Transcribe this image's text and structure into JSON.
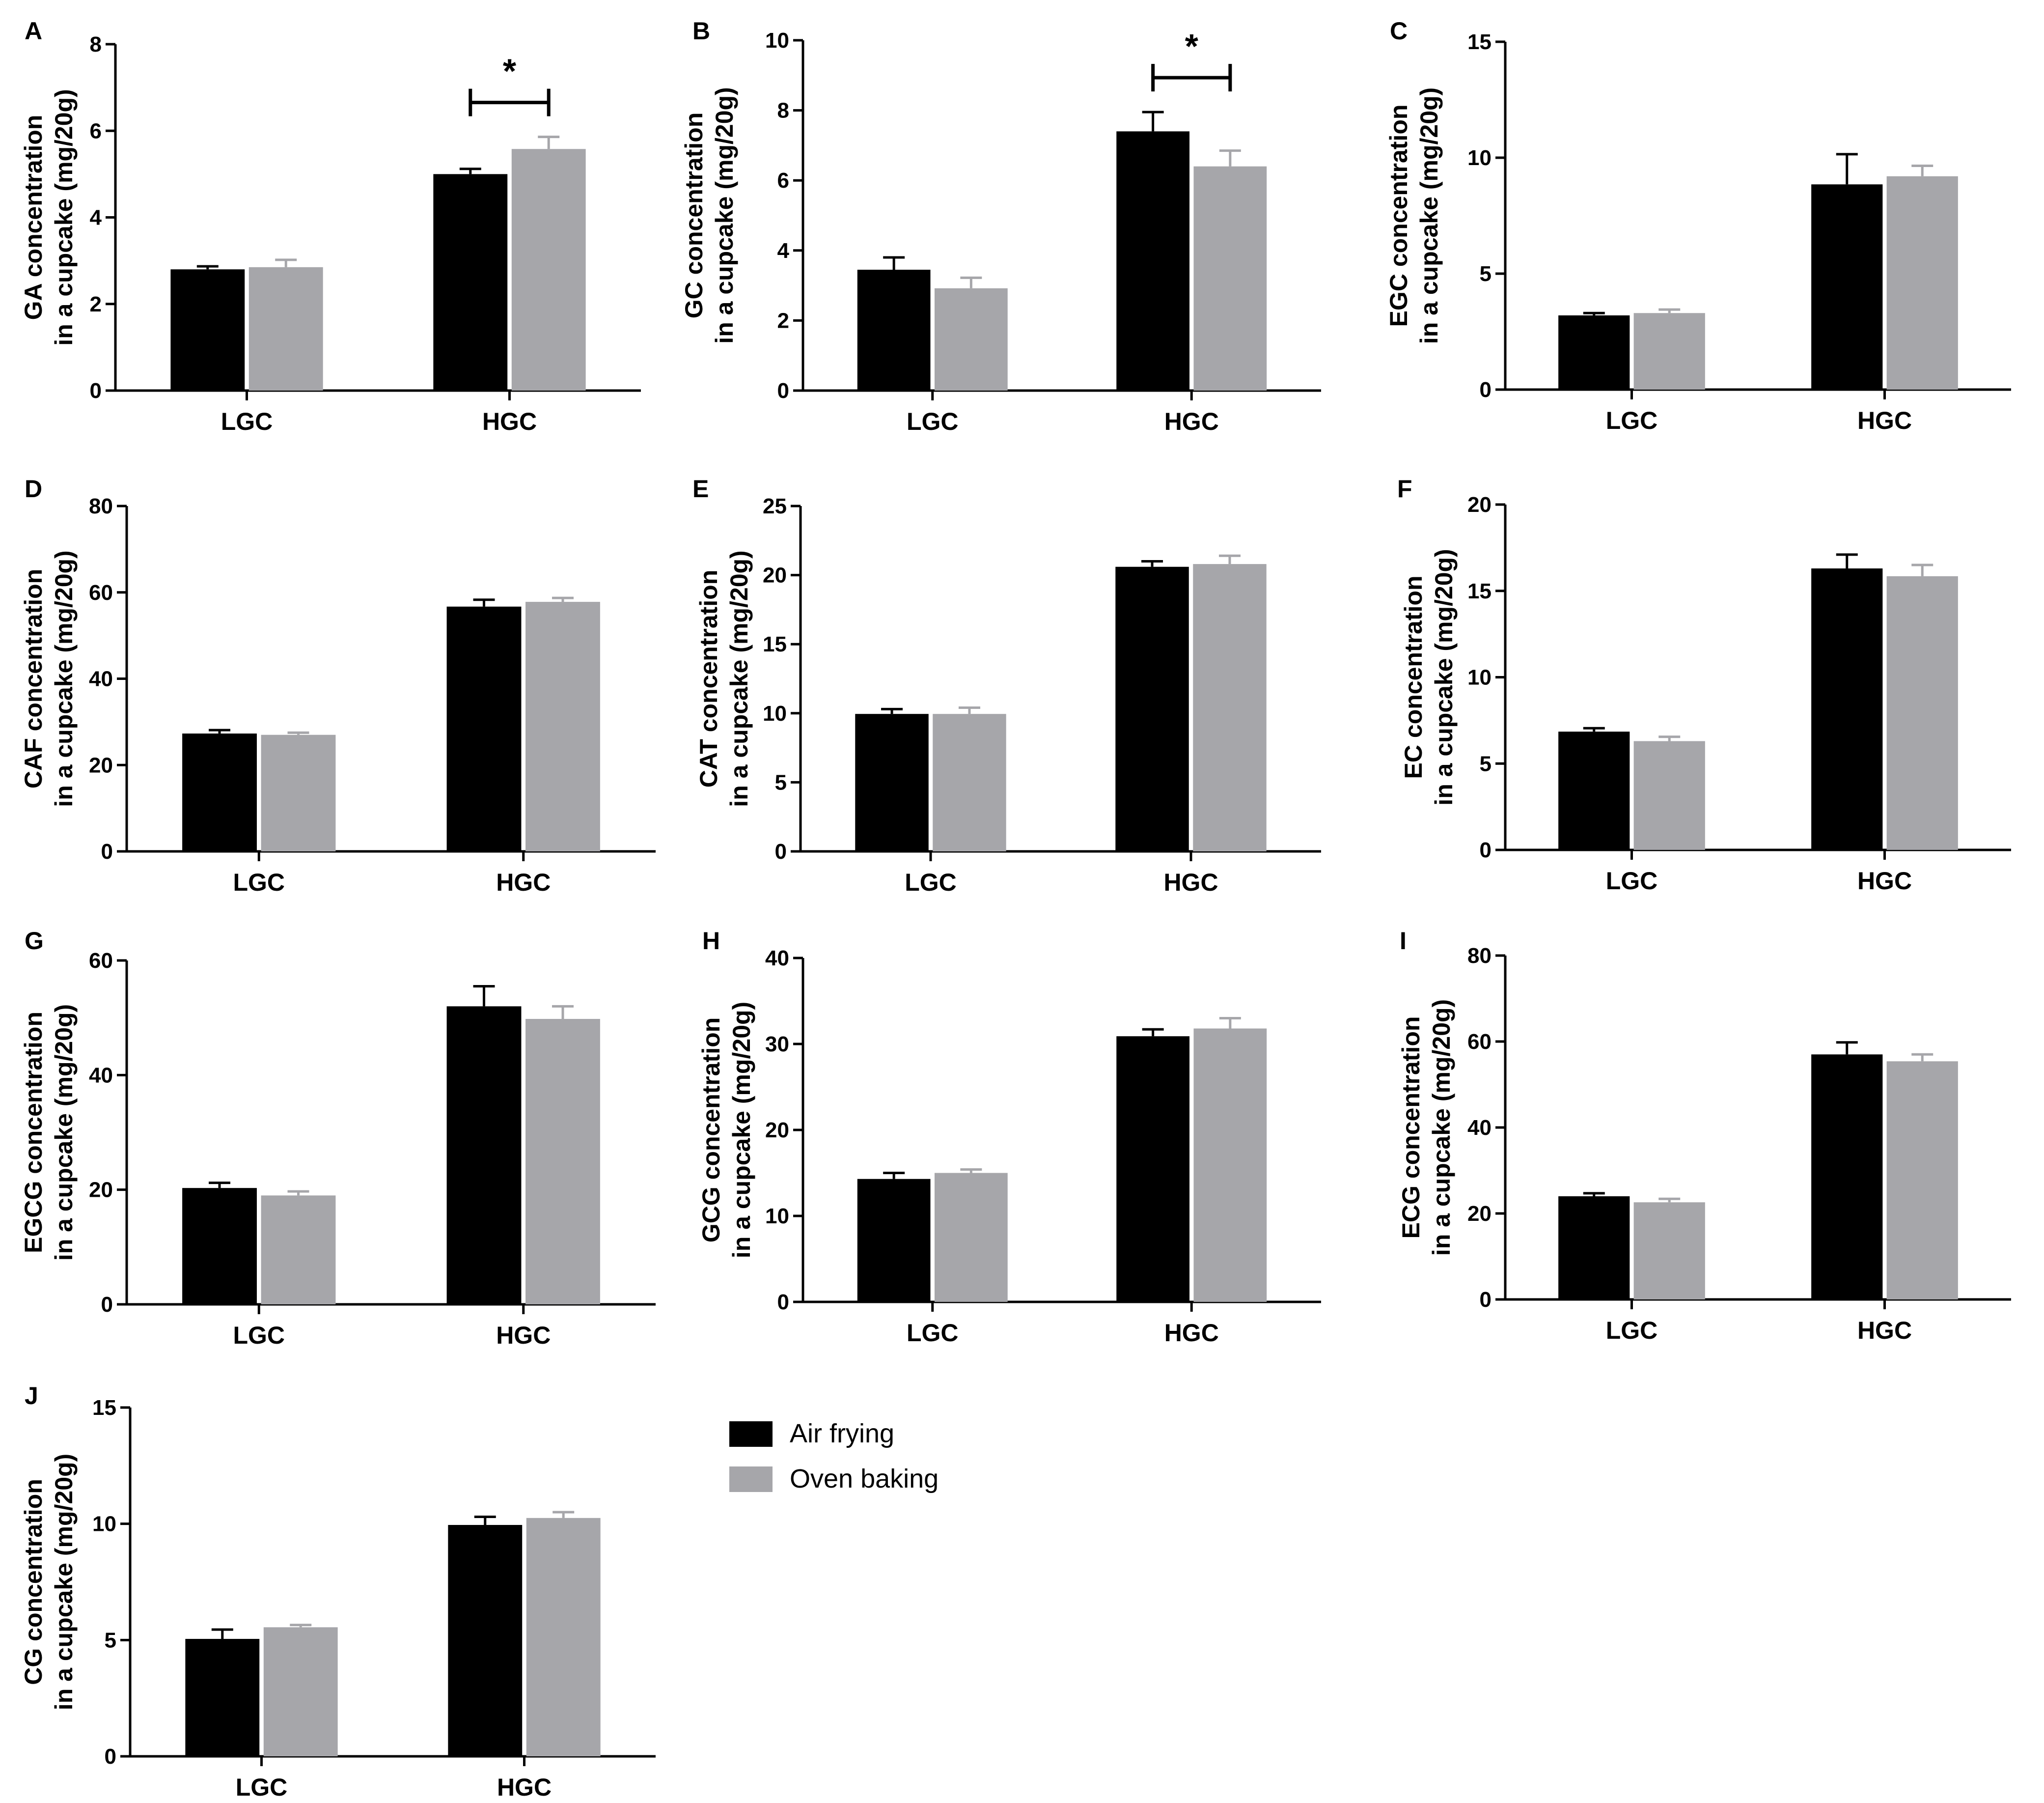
{
  "figure": {
    "series_names": [
      "Air frying",
      "Oven baking"
    ],
    "colors": {
      "air_frying": "#000000",
      "oven_baking": "#a6a6aa",
      "axis": "#000000"
    }
  },
  "legend": {
    "items": [
      {
        "label": "Air frying",
        "color": "#000000"
      },
      {
        "label": "Oven baking",
        "color": "#a6a6aa"
      }
    ]
  },
  "chart_data": [
    {
      "panel": "A",
      "type": "bar",
      "ylabel_line1": "GA concentration",
      "ylabel_line2": "in a cupcake (mg/20g)",
      "categories": [
        "LGC",
        "HGC"
      ],
      "ylim": [
        0,
        8
      ],
      "yticks": [
        0,
        2,
        4,
        6,
        8
      ],
      "series": [
        {
          "name": "Air frying",
          "values": [
            2.8,
            5.0
          ],
          "errors": [
            0.07,
            0.12
          ]
        },
        {
          "name": "Oven baking",
          "values": [
            2.85,
            5.58
          ],
          "errors": [
            0.17,
            0.28
          ]
        }
      ],
      "significance": [
        {
          "category": "HGC",
          "label": "*"
        }
      ]
    },
    {
      "panel": "B",
      "type": "bar",
      "ylabel_line1": "GC concentration",
      "ylabel_line2": "in a cupcake (mg/20g)",
      "categories": [
        "LGC",
        "HGC"
      ],
      "ylim": [
        0,
        10
      ],
      "yticks": [
        0,
        2,
        4,
        6,
        8,
        10
      ],
      "series": [
        {
          "name": "Air frying",
          "values": [
            3.45,
            7.4
          ],
          "errors": [
            0.35,
            0.55
          ]
        },
        {
          "name": "Oven baking",
          "values": [
            2.92,
            6.4
          ],
          "errors": [
            0.3,
            0.45
          ]
        }
      ],
      "significance": [
        {
          "category": "HGC",
          "label": "*"
        }
      ]
    },
    {
      "panel": "C",
      "type": "bar",
      "ylabel_line1": "EGC concentration",
      "ylabel_line2": "in a cupcake (mg/20g)",
      "categories": [
        "LGC",
        "HGC"
      ],
      "ylim": [
        0,
        15
      ],
      "yticks": [
        0,
        5,
        10,
        15
      ],
      "series": [
        {
          "name": "Air frying",
          "values": [
            3.2,
            8.85
          ],
          "errors": [
            0.1,
            1.3
          ]
        },
        {
          "name": "Oven baking",
          "values": [
            3.3,
            9.2
          ],
          "errors": [
            0.15,
            0.45
          ]
        }
      ],
      "significance": []
    },
    {
      "panel": "D",
      "type": "bar",
      "ylabel_line1": "CAF concentration",
      "ylabel_line2": "in a cupcake (mg/20g)",
      "categories": [
        "LGC",
        "HGC"
      ],
      "ylim": [
        0,
        80
      ],
      "yticks": [
        0,
        20,
        40,
        60,
        80
      ],
      "series": [
        {
          "name": "Air frying",
          "values": [
            27.3,
            56.7
          ],
          "errors": [
            0.8,
            1.6
          ]
        },
        {
          "name": "Oven baking",
          "values": [
            27.0,
            57.8
          ],
          "errors": [
            0.5,
            0.9
          ]
        }
      ],
      "significance": []
    },
    {
      "panel": "E",
      "type": "bar",
      "ylabel_line1": "CAT concentration",
      "ylabel_line2": "in a cupcake (mg/20g)",
      "categories": [
        "LGC",
        "HGC"
      ],
      "ylim": [
        0,
        25
      ],
      "yticks": [
        0,
        5,
        10,
        15,
        20,
        25
      ],
      "series": [
        {
          "name": "Air frying",
          "values": [
            9.95,
            20.6
          ],
          "errors": [
            0.35,
            0.4
          ]
        },
        {
          "name": "Oven baking",
          "values": [
            9.95,
            20.8
          ],
          "errors": [
            0.45,
            0.6
          ]
        }
      ],
      "significance": []
    },
    {
      "panel": "F",
      "type": "bar",
      "ylabel_line1": "EC concentration",
      "ylabel_line2": "in a cupcake (mg/20g)",
      "categories": [
        "LGC",
        "HGC"
      ],
      "ylim": [
        0,
        20
      ],
      "yticks": [
        0,
        5,
        10,
        15,
        20
      ],
      "series": [
        {
          "name": "Air frying",
          "values": [
            6.85,
            16.3
          ],
          "errors": [
            0.2,
            0.8
          ]
        },
        {
          "name": "Oven baking",
          "values": [
            6.3,
            15.85
          ],
          "errors": [
            0.25,
            0.65
          ]
        }
      ],
      "significance": []
    },
    {
      "panel": "G",
      "type": "bar",
      "ylabel_line1": "EGCG concentration",
      "ylabel_line2": "in a cupcake (mg/20g)",
      "categories": [
        "LGC",
        "HGC"
      ],
      "ylim": [
        0,
        60
      ],
      "yticks": [
        0,
        20,
        40,
        60
      ],
      "series": [
        {
          "name": "Air frying",
          "values": [
            20.3,
            52.0
          ],
          "errors": [
            0.9,
            3.5
          ]
        },
        {
          "name": "Oven baking",
          "values": [
            19.0,
            49.8
          ],
          "errors": [
            0.7,
            2.2
          ]
        }
      ],
      "significance": []
    },
    {
      "panel": "H",
      "type": "bar",
      "ylabel_line1": "GCG concentration",
      "ylabel_line2": "in a cupcake (mg/20g)",
      "categories": [
        "LGC",
        "HGC"
      ],
      "ylim": [
        0,
        40
      ],
      "yticks": [
        0,
        10,
        20,
        30,
        40
      ],
      "series": [
        {
          "name": "Air frying",
          "values": [
            14.3,
            30.9
          ],
          "errors": [
            0.7,
            0.8
          ]
        },
        {
          "name": "Oven baking",
          "values": [
            15.0,
            31.8
          ],
          "errors": [
            0.4,
            1.2
          ]
        }
      ],
      "significance": []
    },
    {
      "panel": "I",
      "type": "bar",
      "ylabel_line1": "ECG concentration",
      "ylabel_line2": "in a cupcake (mg/20g)",
      "categories": [
        "LGC",
        "HGC"
      ],
      "ylim": [
        0,
        80
      ],
      "yticks": [
        0,
        20,
        40,
        60,
        80
      ],
      "series": [
        {
          "name": "Air frying",
          "values": [
            24.0,
            57.0
          ],
          "errors": [
            0.7,
            2.8
          ]
        },
        {
          "name": "Oven baking",
          "values": [
            22.6,
            55.4
          ],
          "errors": [
            0.8,
            1.6
          ]
        }
      ],
      "significance": []
    },
    {
      "panel": "J",
      "type": "bar",
      "ylabel_line1": "CG concentration",
      "ylabel_line2": "in a cupcake (mg/20g)",
      "categories": [
        "LGC",
        "HGC"
      ],
      "ylim": [
        0,
        15
      ],
      "yticks": [
        0,
        5,
        10,
        15
      ],
      "series": [
        {
          "name": "Air frying",
          "values": [
            5.05,
            9.95
          ],
          "errors": [
            0.4,
            0.35
          ]
        },
        {
          "name": "Oven baking",
          "values": [
            5.55,
            10.25
          ],
          "errors": [
            0.1,
            0.25
          ]
        }
      ],
      "significance": []
    }
  ]
}
